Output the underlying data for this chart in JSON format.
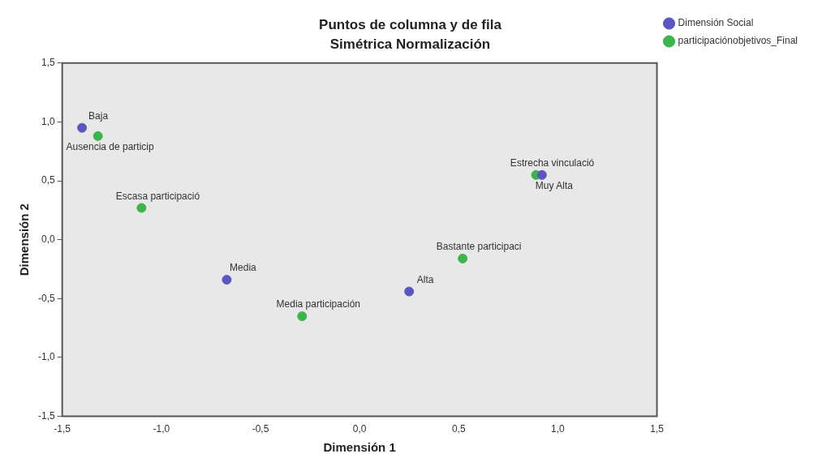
{
  "chart_data": {
    "type": "scatter",
    "title": "Puntos de columna y de fila",
    "subtitle": "Simétrica Normalización",
    "xlabel": "Dimensión 1",
    "ylabel": "Dimensión 2",
    "series": [
      {
        "name": "Dimensión Social",
        "color": "#5b57c0",
        "x": [
          -1.4,
          -0.67,
          0.25,
          0.92
        ],
        "values": [
          0.95,
          -0.34,
          -0.44,
          0.55
        ]
      },
      {
        "name": "participaciónobjetivos_Final",
        "color": "#3cb44b",
        "x": [
          -1.32,
          -1.1,
          -0.29,
          0.52,
          0.89
        ],
        "values": [
          0.88,
          0.27,
          -0.65,
          -0.16,
          0.55
        ]
      }
    ],
    "xlim": [
      -1.5,
      1.5
    ],
    "ylim": [
      -1.5,
      1.5
    ],
    "xticks": [
      {
        "value": -1.5,
        "label": "-1,5"
      },
      {
        "value": -1,
        "label": "-1,0"
      },
      {
        "value": -0.5,
        "label": "-0,5"
      },
      {
        "value": 0,
        "label": "0,0"
      },
      {
        "value": 0.5,
        "label": "0,5"
      },
      {
        "value": 1,
        "label": "1,0"
      },
      {
        "value": 1.5,
        "label": "1,5"
      }
    ],
    "yticks": [
      {
        "value": -1.5,
        "label": "-1,5"
      },
      {
        "value": -1,
        "label": "-1,0"
      },
      {
        "value": -0.5,
        "label": "-0,5"
      },
      {
        "value": 0,
        "label": "0,0"
      },
      {
        "value": 0.5,
        "label": "0,5"
      },
      {
        "value": 1,
        "label": "1,0"
      },
      {
        "value": 1.5,
        "label": "1,5"
      }
    ],
    "annotations": [
      {
        "text": "Baja",
        "x": -1.4,
        "y": 0.95
      },
      {
        "text": "Ausencia de particip",
        "x": -1.32,
        "y": 0.88
      },
      {
        "text": "Escasa participació",
        "x": -1.1,
        "y": 0.27
      },
      {
        "text": "Media",
        "x": -0.67,
        "y": -0.34
      },
      {
        "text": "Media participación",
        "x": -0.29,
        "y": -0.65
      },
      {
        "text": "Alta",
        "x": 0.25,
        "y": -0.44
      },
      {
        "text": "Bastante participaci",
        "x": 0.52,
        "y": -0.16
      },
      {
        "text": "Estrecha vinculació",
        "x": 0.89,
        "y": 0.55
      },
      {
        "text": "Muy Alta",
        "x": 0.92,
        "y": 0.55
      }
    ],
    "grid": false,
    "legend": "top right",
    "marker": "circle"
  }
}
